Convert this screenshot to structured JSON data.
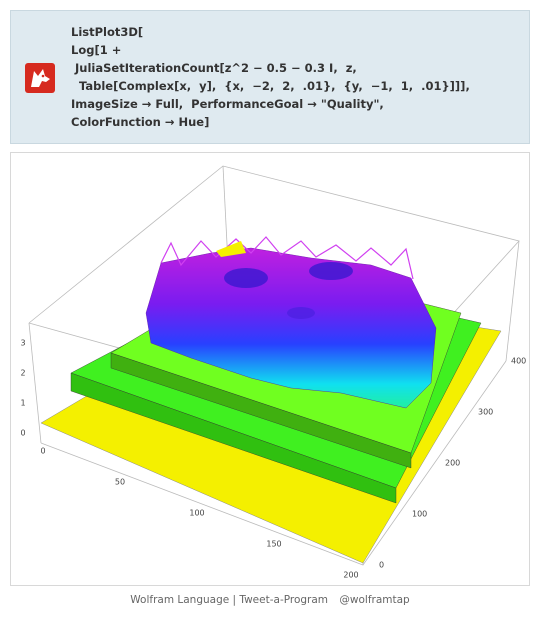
{
  "code": {
    "lines": [
      "ListPlot3D[",
      "Log[1 +",
      " JuliaSetIterationCount[z^2 − 0.5 − 0.3 I,  z,",
      "  Table[Complex[x,  y],  {x,  −2,  2,  .01},  {y,  −1,  1,  .01}]]],",
      "ImageSize → Full,  PerformanceGoal → \"Quality\",",
      "ColorFunction → Hue]"
    ]
  },
  "plot": {
    "z_ticks": [
      "0",
      "1",
      "2",
      "3"
    ],
    "x_ticks": [
      "0",
      "50",
      "100",
      "150",
      "200"
    ],
    "y_ticks": [
      "0",
      "100",
      "200",
      "300",
      "400"
    ]
  },
  "footer": {
    "brand": "Wolfram Language | Tweet-a-Program",
    "handle": "@wolframtap"
  }
}
